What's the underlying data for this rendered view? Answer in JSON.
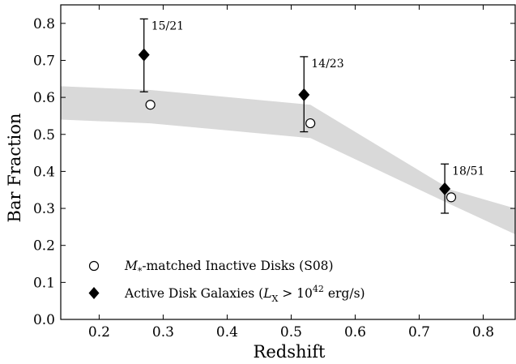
{
  "chart_data": {
    "type": "scatter",
    "title": "",
    "xlabel": "Redshift",
    "ylabel": "Bar Fraction",
    "xlim": [
      0.14,
      0.85
    ],
    "ylim": [
      0.0,
      0.85
    ],
    "x_ticks": [
      "0.2",
      "0.3",
      "0.4",
      "0.5",
      "0.6",
      "0.7",
      "0.8"
    ],
    "y_ticks": [
      "0.0",
      "0.1",
      "0.2",
      "0.3",
      "0.4",
      "0.5",
      "0.6",
      "0.7",
      "0.8"
    ],
    "grid": false,
    "legend_position": "lower-left",
    "band": {
      "color": "#d9d9d9",
      "x": [
        0.14,
        0.28,
        0.53,
        0.75,
        0.85
      ],
      "upper": [
        0.63,
        0.62,
        0.58,
        0.35,
        0.3
      ],
      "lower": [
        0.54,
        0.53,
        0.49,
        0.31,
        0.23
      ]
    },
    "series": [
      {
        "name_main": "-matched Inactive Disks (S08)",
        "name_symbol": "M",
        "name_sub": "*",
        "marker": "open-circle",
        "points": [
          {
            "x": 0.28,
            "y": 0.58
          },
          {
            "x": 0.53,
            "y": 0.53
          },
          {
            "x": 0.75,
            "y": 0.33
          }
        ]
      },
      {
        "name_prefix": "Active Disk Galaxies (",
        "name_symbol": "L",
        "name_sub": "X",
        "name_middle": " > 10",
        "name_sup": "42",
        "name_suffix": " erg/s)",
        "marker": "filled-diamond",
        "points": [
          {
            "x": 0.27,
            "y": 0.715,
            "err_low": 0.615,
            "err_high": 0.812,
            "label": "15/21"
          },
          {
            "x": 0.52,
            "y": 0.607,
            "err_low": 0.507,
            "err_high": 0.71,
            "label": "14/23"
          },
          {
            "x": 0.74,
            "y": 0.353,
            "err_low": 0.287,
            "err_high": 0.42,
            "label": "18/51"
          }
        ]
      }
    ]
  }
}
